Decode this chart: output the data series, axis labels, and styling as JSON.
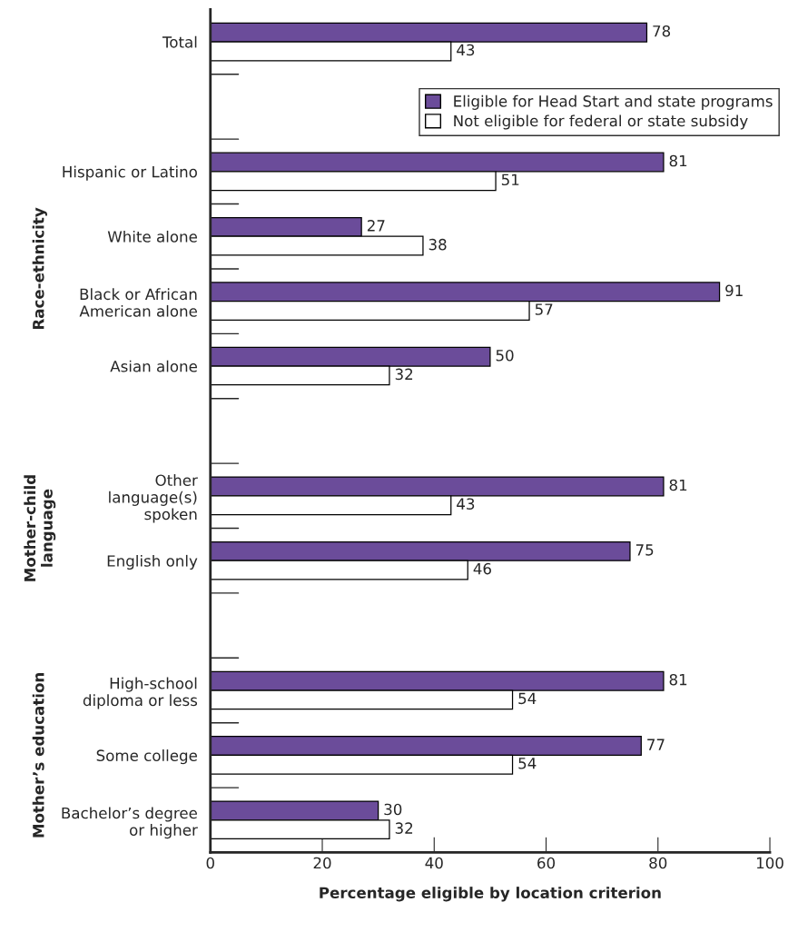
{
  "chart_data": {
    "type": "bar",
    "orientation": "horizontal",
    "categories": [
      "Total",
      null,
      "Hispanic or Latino",
      "White alone",
      "Black or African\nAmerican alone",
      "Asian alone",
      null,
      "Other\nlanguage(s)\nspoken",
      "English only",
      null,
      "High-school\ndiploma or less",
      "Some college",
      "Bachelor’s degree\nor higher"
    ],
    "series": [
      {
        "name": "Eligible for Head Start and state programs",
        "color": "#6b4c9a",
        "values": [
          78,
          null,
          81,
          27,
          91,
          50,
          null,
          81,
          75,
          null,
          81,
          77,
          30
        ]
      },
      {
        "name": "Not eligible for federal or state subsidy",
        "color": "#ffffff",
        "values": [
          43,
          null,
          51,
          38,
          57,
          32,
          null,
          43,
          46,
          null,
          54,
          54,
          32
        ]
      }
    ],
    "xlim": [
      0,
      100
    ],
    "xticks": [
      0,
      20,
      40,
      60,
      80,
      100
    ],
    "xlabel": "Percentage eligible by location criterion",
    "annotations": [
      "Race-ethnicity",
      "Mother-child\nlanguage",
      "Mother’s education"
    ],
    "data_labels": true,
    "grid": false,
    "legend": "top right"
  }
}
